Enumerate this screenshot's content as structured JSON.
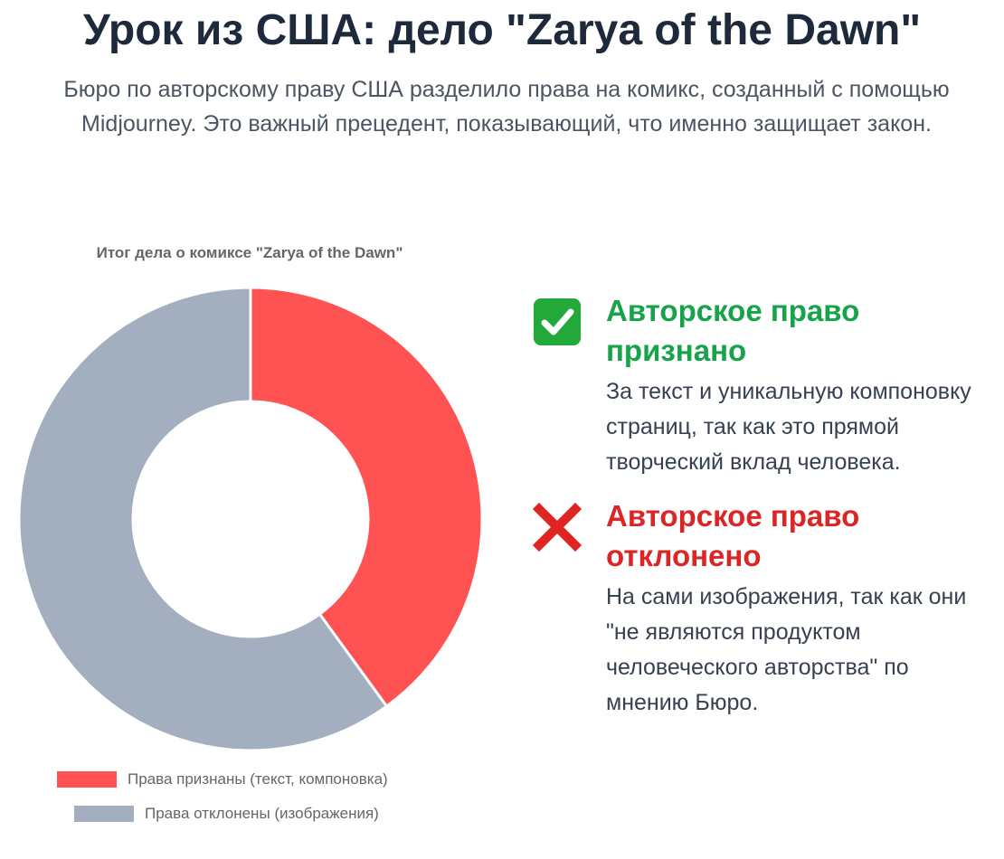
{
  "header": {
    "title": "Урок из США: дело \"Zarya of the Dawn\"",
    "subtitle": "Бюро по авторскому праву США разделило права на комикс, созданный с помощью Midjourney. Это важный прецедент, показывающий, что именно защищает закон."
  },
  "chart_data": {
    "type": "doughnut",
    "title": "Итог дела о комиксе \"Zarya of the Dawn\"",
    "categories": [
      "Права признаны (текст, компоновка)",
      "Права отклонены (изображения)"
    ],
    "values": [
      40,
      60
    ],
    "colors": [
      "#ff5252",
      "#a3aebe"
    ],
    "legend_position": "bottom"
  },
  "cards": [
    {
      "icon": "check-mark-icon",
      "icon_color": "#22a93a",
      "heading": "Авторское право признано",
      "text": "За текст и уникальную компоновку страниц, так как это прямой творческий вклад человека."
    },
    {
      "icon": "cross-mark-icon",
      "icon_color": "#e02424",
      "heading": "Авторское право отклонено",
      "text": "На сами изображения, так как они \"не являются продуктом человеческого авторства\" по мнению Бюро."
    }
  ]
}
